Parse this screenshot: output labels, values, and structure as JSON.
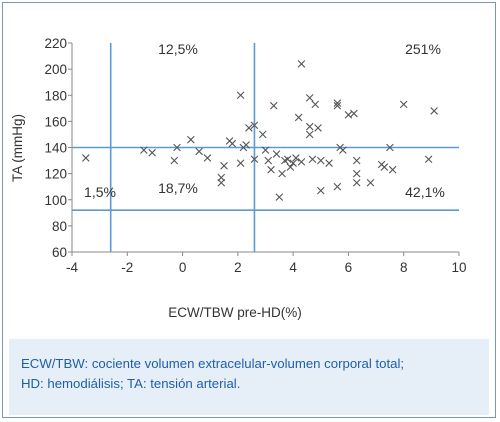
{
  "chart_data": {
    "type": "scatter",
    "title": "",
    "xlabel": "ECW/TBW pre-HD(%)",
    "ylabel": "TA (mmHg)",
    "xlim": [
      -4,
      10
    ],
    "ylim": [
      60,
      220
    ],
    "xticks": [
      "-4",
      "-2",
      "0",
      "2",
      "4",
      "6",
      "8",
      "10"
    ],
    "yticks": [
      "60",
      "80",
      "100",
      "120",
      "140",
      "160",
      "180",
      "200",
      "220"
    ],
    "grid": false,
    "legend": "none",
    "marker": "x",
    "marker_color": "#555555",
    "reference_color": "#5b9bd5",
    "reference_lines": {
      "x": [
        -2.6,
        2.6
      ],
      "y": [
        92,
        140
      ]
    },
    "quadrant_labels": [
      "12,5%",
      "251%",
      "1,5%",
      "18,7%",
      "42,1%"
    ],
    "points": [
      [
        -3.5,
        132
      ],
      [
        -1.4,
        138
      ],
      [
        -1.1,
        136
      ],
      [
        -0.3,
        130
      ],
      [
        -0.2,
        140
      ],
      [
        0.3,
        146
      ],
      [
        0.6,
        137
      ],
      [
        0.9,
        132
      ],
      [
        1.4,
        117
      ],
      [
        1.4,
        113
      ],
      [
        1.5,
        126
      ],
      [
        1.7,
        145
      ],
      [
        1.8,
        143
      ],
      [
        2.1,
        180
      ],
      [
        2.1,
        128
      ],
      [
        2.2,
        140
      ],
      [
        2.3,
        142
      ],
      [
        2.4,
        155
      ],
      [
        2.6,
        157
      ],
      [
        2.6,
        131
      ],
      [
        2.9,
        150
      ],
      [
        3.0,
        138
      ],
      [
        3.1,
        130
      ],
      [
        3.2,
        123
      ],
      [
        3.3,
        172
      ],
      [
        3.4,
        135
      ],
      [
        3.5,
        102
      ],
      [
        3.6,
        120
      ],
      [
        3.7,
        130
      ],
      [
        3.8,
        131
      ],
      [
        3.9,
        125
      ],
      [
        4.0,
        128
      ],
      [
        4.1,
        132
      ],
      [
        4.2,
        163
      ],
      [
        4.3,
        204
      ],
      [
        4.3,
        129
      ],
      [
        4.6,
        178
      ],
      [
        4.6,
        156
      ],
      [
        4.6,
        150
      ],
      [
        4.7,
        131
      ],
      [
        4.8,
        173
      ],
      [
        4.9,
        155
      ],
      [
        5.0,
        130
      ],
      [
        5.0,
        107
      ],
      [
        5.3,
        128
      ],
      [
        5.6,
        174
      ],
      [
        5.6,
        172
      ],
      [
        5.6,
        110
      ],
      [
        5.7,
        140
      ],
      [
        5.8,
        138
      ],
      [
        6.0,
        165
      ],
      [
        6.2,
        166
      ],
      [
        6.3,
        130
      ],
      [
        6.3,
        120
      ],
      [
        6.3,
        113
      ],
      [
        6.8,
        113
      ],
      [
        7.2,
        127
      ],
      [
        7.3,
        125
      ],
      [
        7.5,
        140
      ],
      [
        7.6,
        123
      ],
      [
        8.0,
        173
      ],
      [
        8.9,
        131
      ],
      [
        9.1,
        168
      ]
    ]
  },
  "caption": {
    "line1": "ECW/TBW: cociente volumen extracelular-volumen corporal total;",
    "line2": "HD: hemodiálisis; TA: tensión arterial."
  }
}
